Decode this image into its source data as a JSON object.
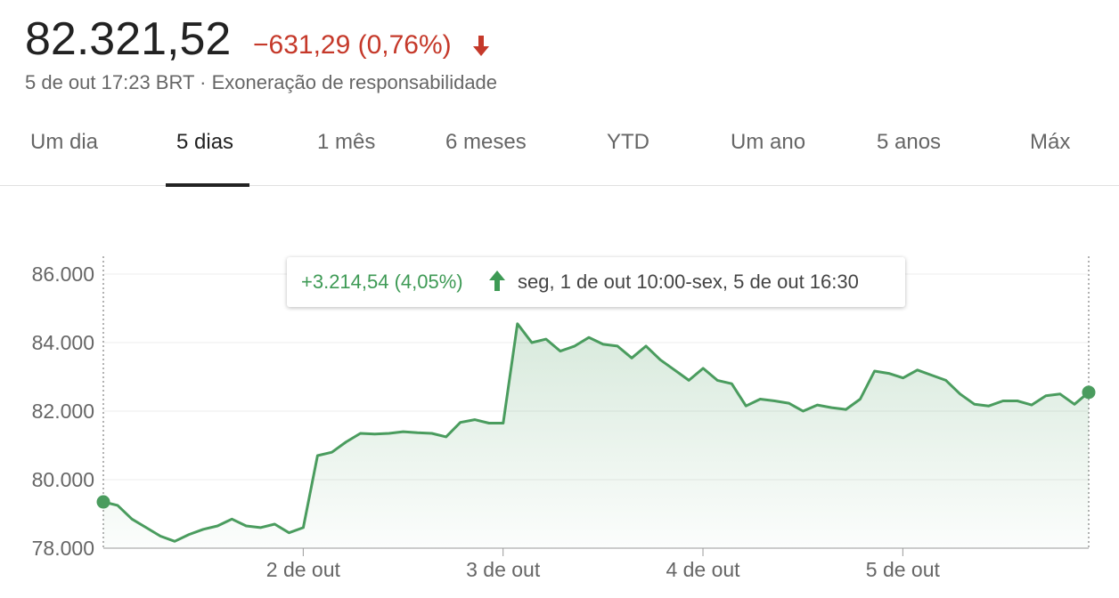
{
  "quote": {
    "price": "82.321,52",
    "change": "−631,29 (0,76%)",
    "timestamp": "5 de out 17:23 BRT",
    "separator": "·",
    "disclaimer": "Exoneração de responsabilidade"
  },
  "colors": {
    "negative": "#c5392a",
    "positive": "#3e9a55",
    "line": "#4a9c5e",
    "grid": "#ececec"
  },
  "icons": {
    "change_direction": "arrow-down-icon",
    "range_direction": "arrow-up-icon"
  },
  "tabs": [
    {
      "label": "Um dia",
      "active": false
    },
    {
      "label": "5 dias",
      "active": true
    },
    {
      "label": "1 mês",
      "active": false
    },
    {
      "label": "6 meses",
      "active": false
    },
    {
      "label": "YTD",
      "active": false
    },
    {
      "label": "Um ano",
      "active": false
    },
    {
      "label": "5 anos",
      "active": false
    },
    {
      "label": "Máx",
      "active": false
    }
  ],
  "tooltip": {
    "change": "+3.214,54 (4,05%)",
    "range": "seg, 1 de out 10:00-sex, 5 de out 16:30"
  },
  "chart_data": {
    "type": "area",
    "y_ticks": [
      "78.000",
      "80.000",
      "82.000",
      "84.000",
      "86.000"
    ],
    "ylim": [
      78000,
      86000
    ],
    "x_ticks": [
      "2 de out",
      "3 de out",
      "4 de out",
      "5 de out"
    ],
    "series": [
      {
        "values": [
          79350,
          79250,
          78850,
          78600,
          78350,
          78200,
          78400,
          78550,
          78650,
          78850,
          78650,
          78600,
          78700,
          78450,
          78600,
          80700,
          80800,
          81100,
          81350,
          81330,
          81350,
          81400,
          81370,
          81350,
          81250,
          81670,
          81750,
          81650,
          81650,
          84550,
          84000,
          84100,
          83750,
          83900,
          84150,
          83950,
          83900,
          83550,
          83900,
          83500,
          83200,
          82900,
          83250,
          82900,
          82800,
          82150,
          82350,
          82300,
          82230,
          82000,
          82180,
          82100,
          82050,
          82350,
          83170,
          83100,
          82970,
          83200,
          83050,
          82900,
          82500,
          82200,
          82150,
          82300,
          82300,
          82180,
          82450,
          82500,
          82200,
          82550
        ]
      }
    ]
  }
}
